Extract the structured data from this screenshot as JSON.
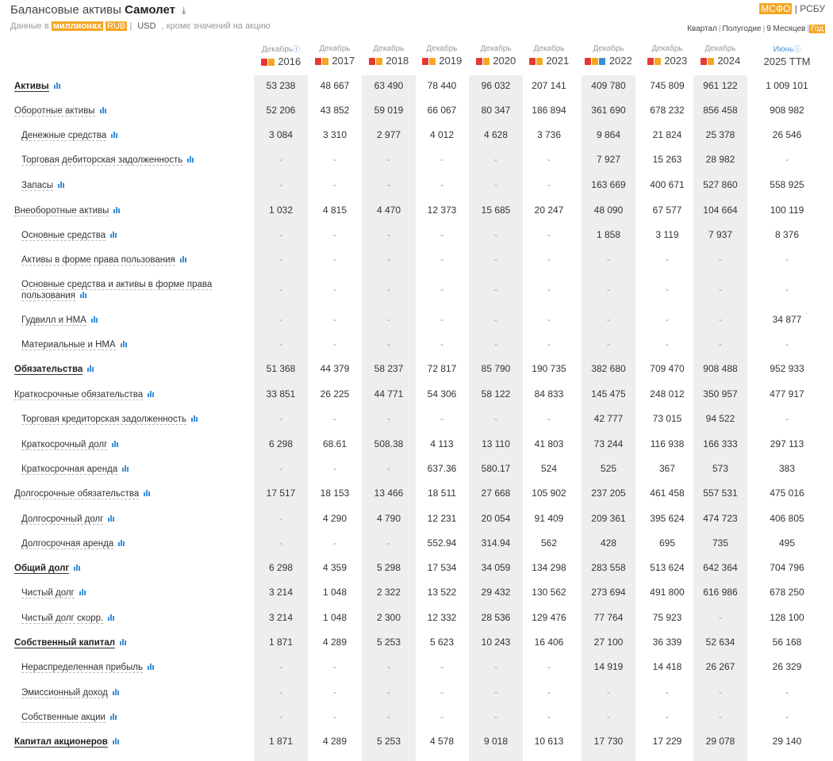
{
  "header": {
    "title": "Балансовые активы",
    "company": "Самолет",
    "subtitle_prefix": "Данные в",
    "units": "миллионах",
    "currency_active": "RUB",
    "currency_alt": "USD",
    "subtitle_suffix": ", кроме значений на акцию"
  },
  "standards": {
    "active": "МСФО",
    "other": "РСБУ"
  },
  "periods": {
    "q": "Квартал",
    "h": "Полугодие",
    "m9": "9 Месяцев",
    "y": "Год"
  },
  "columns": [
    {
      "month": "Декабрь",
      "year": "2016"
    },
    {
      "month": "Декабрь",
      "year": "2017"
    },
    {
      "month": "Декабрь",
      "year": "2018"
    },
    {
      "month": "Декабрь",
      "year": "2019"
    },
    {
      "month": "Декабрь",
      "year": "2020"
    },
    {
      "month": "Декабрь",
      "year": "2021"
    },
    {
      "month": "Декабрь",
      "year": "2022"
    },
    {
      "month": "Декабрь",
      "year": "2023"
    },
    {
      "month": "Декабрь",
      "year": "2024"
    },
    {
      "month": "Июнь",
      "year": "2025 TTM"
    }
  ],
  "rows": [
    {
      "label": "Активы",
      "values": [
        "53 238",
        "48 667",
        "63 490",
        "78 440",
        "96 032",
        "207 141",
        "409 780",
        "745 809",
        "961 122",
        "1 009 101"
      ]
    },
    {
      "label": "Оборотные активы",
      "values": [
        "52 206",
        "43 852",
        "59 019",
        "66 067",
        "80 347",
        "186 894",
        "361 690",
        "678 232",
        "856 458",
        "908 982"
      ]
    },
    {
      "label": "Денежные средства",
      "values": [
        "3 084",
        "3 310",
        "2 977",
        "4 012",
        "4 628",
        "3 736",
        "9 864",
        "21 824",
        "25 378",
        "26 546"
      ]
    },
    {
      "label": "Торговая дебиторская задолженность",
      "values": [
        "-",
        "-",
        "-",
        "-",
        "-",
        "-",
        "7 927",
        "15 263",
        "28 982",
        "-"
      ]
    },
    {
      "label": "Запасы",
      "values": [
        "-",
        "-",
        "-",
        "-",
        "-",
        "-",
        "163 669",
        "400 671",
        "527 860",
        "558 925"
      ]
    },
    {
      "label": "Внеоборотные активы",
      "values": [
        "1 032",
        "4 815",
        "4 470",
        "12 373",
        "15 685",
        "20 247",
        "48 090",
        "67 577",
        "104 664",
        "100 119"
      ]
    },
    {
      "label": "Основные средства",
      "values": [
        "-",
        "-",
        "-",
        "-",
        "-",
        "-",
        "1 858",
        "3 119",
        "7 937",
        "8 376"
      ]
    },
    {
      "label": "Активы в форме права пользования",
      "values": [
        "-",
        "-",
        "-",
        "-",
        "-",
        "-",
        "-",
        "-",
        "-",
        "-"
      ]
    },
    {
      "label": "Основные средства и активы в форме права пользования",
      "line1": "Основные средства и активы в форме права",
      "line2": "пользования",
      "values": [
        "-",
        "-",
        "-",
        "-",
        "-",
        "-",
        "-",
        "-",
        "-",
        "-"
      ]
    },
    {
      "label": "Гудвилл и НМА",
      "values": [
        "-",
        "-",
        "-",
        "-",
        "-",
        "-",
        "-",
        "-",
        "-",
        "34 877"
      ]
    },
    {
      "label": "Материальные и НМА",
      "values": [
        "-",
        "-",
        "-",
        "-",
        "-",
        "-",
        "-",
        "-",
        "-",
        "-"
      ]
    },
    {
      "label": "Обязательства",
      "values": [
        "51 368",
        "44 379",
        "58 237",
        "72 817",
        "85 790",
        "190 735",
        "382 680",
        "709 470",
        "908 488",
        "952 933"
      ]
    },
    {
      "label": "Краткосрочные обязательства",
      "values": [
        "33 851",
        "26 225",
        "44 771",
        "54 306",
        "58 122",
        "84 833",
        "145 475",
        "248 012",
        "350 957",
        "477 917"
      ]
    },
    {
      "label": "Торговая кредиторская задолженность",
      "values": [
        "-",
        "-",
        "-",
        "-",
        "-",
        "-",
        "42 777",
        "73 015",
        "94 522",
        "-"
      ]
    },
    {
      "label": "Краткосрочный долг",
      "values": [
        "6 298",
        "68.61",
        "508.38",
        "4 113",
        "13 110",
        "41 803",
        "73 244",
        "116 938",
        "166 333",
        "297 113"
      ]
    },
    {
      "label": "Краткосрочная аренда",
      "values": [
        "-",
        "-",
        "-",
        "637.36",
        "580.17",
        "524",
        "525",
        "367",
        "573",
        "383"
      ]
    },
    {
      "label": "Долгосрочные обязательства",
      "values": [
        "17 517",
        "18 153",
        "13 466",
        "18 511",
        "27 668",
        "105 902",
        "237 205",
        "461 458",
        "557 531",
        "475 016"
      ]
    },
    {
      "label": "Долгосрочный долг",
      "values": [
        "-",
        "4 290",
        "4 790",
        "12 231",
        "20 054",
        "91 409",
        "209 361",
        "395 624",
        "474 723",
        "406 805"
      ]
    },
    {
      "label": "Долгосрочная аренда",
      "values": [
        "-",
        "-",
        "-",
        "552.94",
        "314.94",
        "562",
        "428",
        "695",
        "735",
        "495"
      ]
    },
    {
      "label": "Общий долг",
      "values": [
        "6 298",
        "4 359",
        "5 298",
        "17 534",
        "34 059",
        "134 298",
        "283 558",
        "513 624",
        "642 364",
        "704 796"
      ]
    },
    {
      "label": "Чистый долг",
      "values": [
        "3 214",
        "1 048",
        "2 322",
        "13 522",
        "29 432",
        "130 562",
        "273 694",
        "491 800",
        "616 986",
        "678 250"
      ]
    },
    {
      "label": "Чистый долг скорр.",
      "values": [
        "3 214",
        "1 048",
        "2 300",
        "12 332",
        "28 536",
        "129 476",
        "77 764",
        "75 923",
        "-",
        "128 100"
      ]
    },
    {
      "label": "Собственный капитал",
      "values": [
        "1 871",
        "4 289",
        "5 253",
        "5 623",
        "10 243",
        "16 406",
        "27 100",
        "36 339",
        "52 634",
        "56 168"
      ]
    },
    {
      "label": "Нераспределенная прибыль",
      "values": [
        "-",
        "-",
        "-",
        "-",
        "-",
        "-",
        "14 919",
        "14 418",
        "26 267",
        "26 329"
      ]
    },
    {
      "label": "Эмиссионный доход",
      "values": [
        "-",
        "-",
        "-",
        "-",
        "-",
        "-",
        "-",
        "-",
        "-",
        "-"
      ]
    },
    {
      "label": "Собственные акции",
      "values": [
        "-",
        "-",
        "-",
        "-",
        "-",
        "-",
        "-",
        "-",
        "-",
        "-"
      ]
    },
    {
      "label": "Капитал акционеров",
      "values": [
        "1 871",
        "4 289",
        "5 253",
        "4 578",
        "9 018",
        "10 613",
        "17 730",
        "17 229",
        "29 078",
        "29 140"
      ]
    }
  ]
}
